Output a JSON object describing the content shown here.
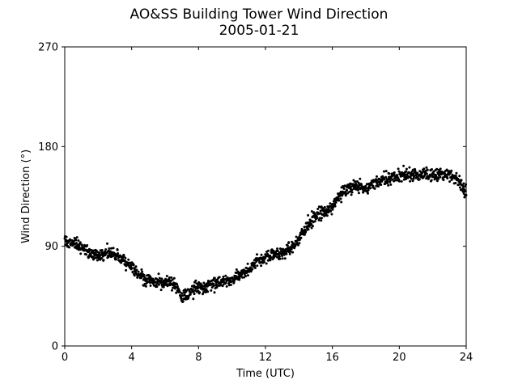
{
  "chart_data": {
    "type": "scatter",
    "title": "AO&SS Building Tower Wind Direction",
    "subtitle": "2005-01-21",
    "xlabel": "Time (UTC)",
    "ylabel": "Wind Direction (°)",
    "xlim": [
      0,
      24
    ],
    "ylim": [
      0,
      270
    ],
    "xticks": [
      0,
      4,
      8,
      12,
      16,
      20,
      24
    ],
    "yticks": [
      0,
      90,
      180,
      270
    ],
    "grid": false,
    "marker_color": "#000000",
    "trend": [
      [
        0.0,
        94
      ],
      [
        0.5,
        92
      ],
      [
        1.0,
        88
      ],
      [
        1.5,
        84
      ],
      [
        2.0,
        82
      ],
      [
        2.5,
        84
      ],
      [
        3.0,
        82
      ],
      [
        3.5,
        78
      ],
      [
        4.0,
        72
      ],
      [
        4.5,
        63
      ],
      [
        5.0,
        60
      ],
      [
        5.5,
        58
      ],
      [
        6.0,
        58
      ],
      [
        6.5,
        58
      ],
      [
        7.0,
        44
      ],
      [
        7.3,
        45
      ],
      [
        7.6,
        50
      ],
      [
        8.0,
        53
      ],
      [
        8.5,
        54
      ],
      [
        9.0,
        56
      ],
      [
        9.5,
        58
      ],
      [
        10.0,
        60
      ],
      [
        10.5,
        64
      ],
      [
        11.0,
        70
      ],
      [
        11.5,
        76
      ],
      [
        12.0,
        80
      ],
      [
        12.5,
        82
      ],
      [
        13.0,
        84
      ],
      [
        13.5,
        88
      ],
      [
        14.0,
        96
      ],
      [
        14.5,
        108
      ],
      [
        15.0,
        118
      ],
      [
        15.5,
        122
      ],
      [
        16.0,
        126
      ],
      [
        16.5,
        138
      ],
      [
        17.0,
        143
      ],
      [
        17.5,
        144
      ],
      [
        18.0,
        142
      ],
      [
        18.5,
        146
      ],
      [
        19.0,
        150
      ],
      [
        19.5,
        152
      ],
      [
        20.0,
        153
      ],
      [
        20.5,
        155
      ],
      [
        21.0,
        156
      ],
      [
        21.5,
        155
      ],
      [
        22.0,
        154
      ],
      [
        22.5,
        155
      ],
      [
        23.0,
        155
      ],
      [
        23.5,
        150
      ],
      [
        24.0,
        140
      ]
    ],
    "sample_interval_hours": 0.0167,
    "scatter_spread_deg": 5
  }
}
